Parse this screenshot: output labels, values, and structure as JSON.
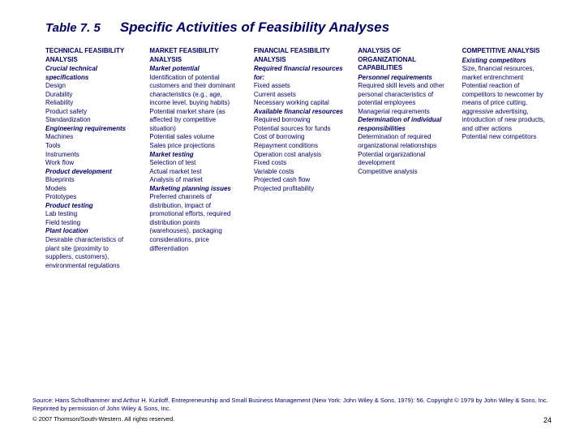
{
  "title": {
    "label": "Table 7. 5",
    "text": "Specific Activities of Feasibility Analyses"
  },
  "columns": [
    {
      "header": "TECHNICAL FEASIBILITY ANALYSIS",
      "items": [
        {
          "t": "Crucial technical specifications",
          "i": true
        },
        {
          "t": "Design"
        },
        {
          "t": "Durability"
        },
        {
          "t": "Reliability"
        },
        {
          "t": "Product safety"
        },
        {
          "t": "Standardization"
        },
        {
          "t": "Engineering requirements",
          "i": true
        },
        {
          "t": "Machines"
        },
        {
          "t": "Tools"
        },
        {
          "t": "Instruments"
        },
        {
          "t": "Work flow"
        },
        {
          "t": "Product development",
          "i": true
        },
        {
          "t": "Blueprints"
        },
        {
          "t": "Models"
        },
        {
          "t": "Prototypes"
        },
        {
          "t": "Product testing",
          "i": true
        },
        {
          "t": "Lab testing"
        },
        {
          "t": "Field testing"
        },
        {
          "t": "Plant location",
          "i": true
        },
        {
          "t": "Desirable characteristics of plant site (proximity to suppliers, customers), environmental regulations"
        }
      ]
    },
    {
      "header": "MARKET FEASIBILITY ANALYSIS",
      "items": [
        {
          "t": "Market potential",
          "i": true
        },
        {
          "t": "Identification of potential customers and their dominant characteristics (e.g., age, income level, buying habits)"
        },
        {
          "t": "Potential market share (as affected by competitive situation)"
        },
        {
          "t": "Potential sales volume"
        },
        {
          "t": "Sales price projections"
        },
        {
          "t": "Market testing",
          "i": true
        },
        {
          "t": "Selection of test"
        },
        {
          "t": "Actual market test"
        },
        {
          "t": "Analysis of market"
        },
        {
          "t": "Marketing planning issues",
          "i": true
        },
        {
          "t": "Preferred channels of distribution, impact of promotional efforts, required distribution points (warehouses), packaging considerations, price differentiation"
        }
      ]
    },
    {
      "header": "FINANCIAL FEASIBILITY ANALYSIS",
      "items": [
        {
          "t": "Required financial resources for:",
          "i": true
        },
        {
          "t": "Fixed assets"
        },
        {
          "t": "Current assets"
        },
        {
          "t": "Necessary working capital"
        },
        {
          "t": "Available financial resources",
          "i": true
        },
        {
          "t": "Required borrowing"
        },
        {
          "t": "Potential sources for funds"
        },
        {
          "t": "Cost of borrowing"
        },
        {
          "t": "Repayment conditions"
        },
        {
          "t": "Operation cost analysis"
        },
        {
          "t": "Fixed costs"
        },
        {
          "t": "Variable costs"
        },
        {
          "t": "Projected cash flow"
        },
        {
          "t": "Projected profitability"
        }
      ]
    },
    {
      "header": "ANALYSIS OF ORGANIZATIONAL CAPABILITIES",
      "items": [
        {
          "t": "Personnel requirements",
          "i": true
        },
        {
          "t": "Required skill levels and other personal characteristics of potential employees"
        },
        {
          "t": "Managerial requirements"
        },
        {
          "t": "Determination of individual responsibilities",
          "i": true
        },
        {
          "t": "Determination of required organizational relationships"
        },
        {
          "t": "Potential organizational development"
        },
        {
          "t": "Competitive analysis"
        }
      ]
    },
    {
      "header": "COMPETITIVE ANALYSIS",
      "items": [
        {
          "t": "Existing competitors",
          "i": true
        },
        {
          "t": "Size, financial resources, market entrenchment"
        },
        {
          "t": "Potential reaction of competitors to newcomer by means of price cutting, aggressive advertising, introduction of new products, and other actions"
        },
        {
          "t": "Potential new competitors"
        }
      ]
    }
  ],
  "footer": {
    "source": "Source: Hans Schollhammer and Arthur H. Kuriloff, Entrepreneurship and Small Business Management (New York: John Wiley & Sons, 1979): 56. Copyright © 1979 by John Wiley & Sons, Inc. Reprinted by permission of John Wiley & Sons, Inc.",
    "copyright": "© 2007 Thomson/South-Western. All rights reserved.",
    "page": "24"
  }
}
